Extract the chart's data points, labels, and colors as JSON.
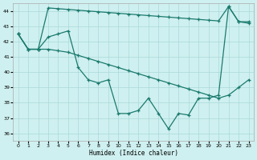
{
  "background_color": "#cff0f0",
  "grid_color": "#aad8d8",
  "line_color": "#1a7a6e",
  "xlabel": "Humidex (Indice chaleur)",
  "xlim": [
    -0.5,
    23.5
  ],
  "ylim": [
    35.5,
    44.5
  ],
  "yticks": [
    36,
    37,
    38,
    39,
    40,
    41,
    42,
    43,
    44
  ],
  "xticks": [
    0,
    1,
    2,
    3,
    4,
    5,
    6,
    7,
    8,
    9,
    10,
    11,
    12,
    13,
    14,
    15,
    16,
    17,
    18,
    19,
    20,
    21,
    22,
    23
  ],
  "line1_x": [
    0,
    1,
    2,
    3,
    4,
    5,
    6,
    7,
    8,
    9,
    10,
    11,
    12,
    13,
    14,
    15,
    16,
    17,
    18,
    19,
    20,
    21,
    22,
    23
  ],
  "line1_y": [
    42.5,
    41.5,
    41.5,
    44.2,
    44.15,
    44.1,
    44.05,
    44.0,
    43.95,
    43.9,
    43.85,
    43.8,
    43.75,
    43.7,
    43.65,
    43.6,
    43.55,
    43.5,
    43.45,
    43.4,
    43.35,
    44.3,
    43.3,
    43.2
  ],
  "line2_x": [
    0,
    1,
    2,
    3,
    4,
    5,
    6,
    7,
    8,
    9,
    10,
    11,
    12,
    13,
    14,
    15,
    16,
    17,
    18,
    19,
    20,
    21,
    22,
    23
  ],
  "line2_y": [
    42.5,
    41.5,
    41.5,
    41.5,
    41.4,
    41.3,
    41.1,
    40.9,
    40.7,
    40.5,
    40.3,
    40.1,
    39.9,
    39.7,
    39.5,
    39.3,
    39.1,
    38.9,
    38.7,
    38.5,
    38.3,
    38.5,
    39.0,
    39.5
  ],
  "line3_x": [
    0,
    1,
    2,
    3,
    4,
    5,
    6,
    7,
    8,
    9,
    10,
    11,
    12,
    13,
    14,
    15,
    16,
    17,
    18,
    19,
    20,
    21,
    22,
    23
  ],
  "line3_y": [
    42.5,
    41.5,
    41.5,
    42.3,
    42.5,
    42.7,
    40.3,
    39.5,
    39.3,
    39.5,
    37.3,
    37.3,
    37.5,
    38.3,
    37.3,
    36.3,
    37.3,
    37.2,
    38.3,
    38.3,
    38.5,
    44.3,
    43.3,
    43.3
  ]
}
